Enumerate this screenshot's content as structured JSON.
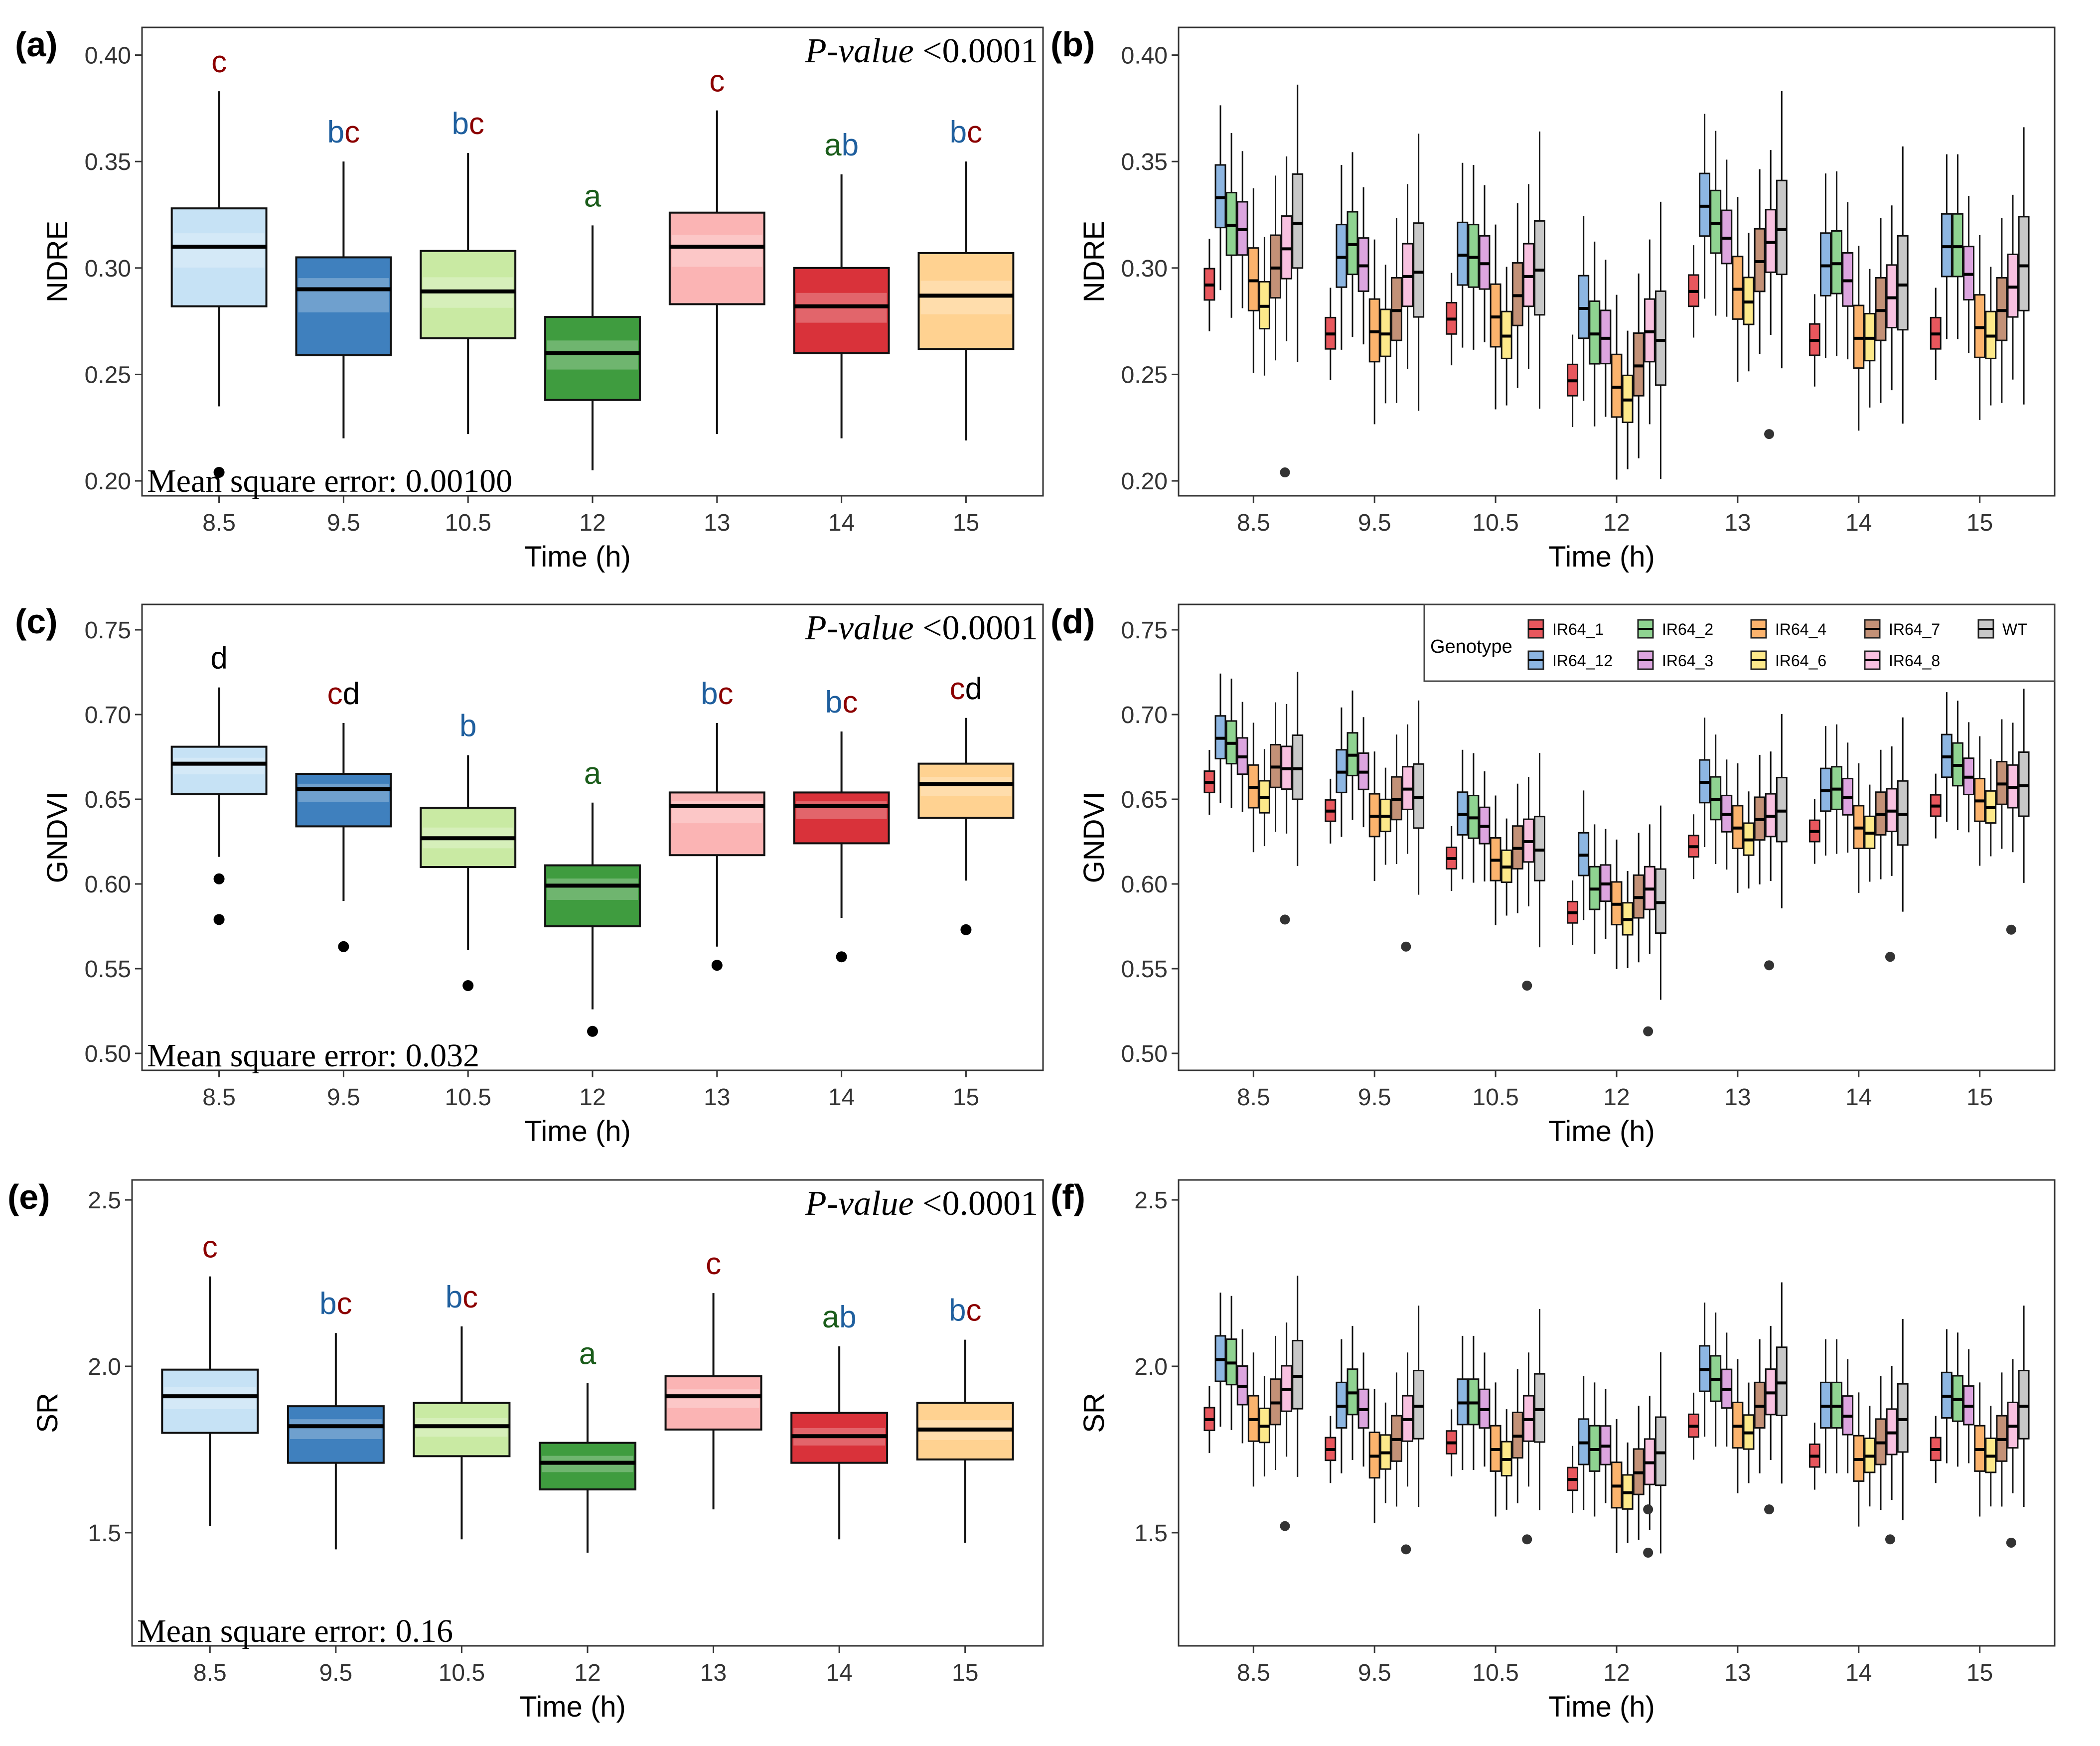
{
  "colors": {
    "time_palette": [
      "#c6e2f5",
      "#3f80be",
      "#c9eaa3",
      "#3f9c3f",
      "#fbb4b4",
      "#d9323a",
      "#ffd291"
    ],
    "genotype_palette": [
      "#e8575d",
      "#8db6e2",
      "#8fd391",
      "#dca5df",
      "#fbb36d",
      "#fde98a",
      "#c39177",
      "#f8c1e0",
      "#c8c8c8"
    ],
    "letter_red": "#8b0000",
    "letter_blue": "#1f5f9e",
    "letter_green": "#1a5c1a",
    "letter_black": "#000000"
  },
  "legend": {
    "title": "Genotype",
    "items": [
      "IR64_1",
      "IR64_12",
      "IR64_2",
      "IR64_3",
      "IR64_4",
      "IR64_6",
      "IR64_7",
      "IR64_8",
      "WT"
    ]
  },
  "chart_data": [
    {
      "panel": "(a)",
      "type": "box",
      "ylabel": "NDRE",
      "xlabel": "Time (h)",
      "ylim": [
        0.193,
        0.413
      ],
      "yticks": [
        0.2,
        0.25,
        0.3,
        0.35,
        0.4
      ],
      "ytick_decimals": 2,
      "categories": [
        "8.5",
        "9.5",
        "10.5",
        "12",
        "13",
        "14",
        "15"
      ],
      "pvalue_label": "P-value",
      "pvalue_text": "<0.0001",
      "mse_text": "Mean square error: 0.00100",
      "boxes": [
        {
          "whislo": 0.235,
          "q1": 0.282,
          "med": 0.31,
          "q3": 0.328,
          "whishi": 0.383,
          "fliers": [
            0.204
          ],
          "letters": [
            [
              "c",
              "red"
            ]
          ]
        },
        {
          "whislo": 0.22,
          "q1": 0.259,
          "med": 0.29,
          "q3": 0.305,
          "whishi": 0.35,
          "fliers": [],
          "letters": [
            [
              "b",
              "blue"
            ],
            [
              "c",
              "red"
            ]
          ]
        },
        {
          "whislo": 0.222,
          "q1": 0.267,
          "med": 0.289,
          "q3": 0.308,
          "whishi": 0.354,
          "fliers": [],
          "letters": [
            [
              "b",
              "blue"
            ],
            [
              "c",
              "red"
            ]
          ]
        },
        {
          "whislo": 0.205,
          "q1": 0.238,
          "med": 0.26,
          "q3": 0.277,
          "whishi": 0.32,
          "fliers": [],
          "letters": [
            [
              "a",
              "green"
            ]
          ]
        },
        {
          "whislo": 0.222,
          "q1": 0.283,
          "med": 0.31,
          "q3": 0.326,
          "whishi": 0.374,
          "fliers": [],
          "letters": [
            [
              "c",
              "red"
            ]
          ]
        },
        {
          "whislo": 0.22,
          "q1": 0.26,
          "med": 0.282,
          "q3": 0.3,
          "whishi": 0.344,
          "fliers": [],
          "letters": [
            [
              "a",
              "green"
            ],
            [
              "b",
              "blue"
            ]
          ]
        },
        {
          "whislo": 0.219,
          "q1": 0.262,
          "med": 0.287,
          "q3": 0.307,
          "whishi": 0.35,
          "fliers": [],
          "letters": [
            [
              "b",
              "blue"
            ],
            [
              "c",
              "red"
            ]
          ]
        }
      ]
    },
    {
      "panel": "(b)",
      "type": "grouped-box",
      "ylabel": "NDRE",
      "xlabel": "Time (h)",
      "ylim": [
        0.193,
        0.413
      ],
      "yticks": [
        0.2,
        0.25,
        0.3,
        0.35,
        0.4
      ],
      "ytick_decimals": 2,
      "categories": [
        "8.5",
        "9.5",
        "10.5",
        "12",
        "13",
        "14",
        "15"
      ],
      "group_meds": [
        [
          0.292,
          0.333,
          0.32,
          0.318,
          0.294,
          0.282,
          0.3,
          0.309,
          0.321
        ],
        [
          0.269,
          0.305,
          0.311,
          0.301,
          0.27,
          0.269,
          0.28,
          0.296,
          0.298
        ],
        [
          0.276,
          0.306,
          0.305,
          0.302,
          0.277,
          0.268,
          0.287,
          0.296,
          0.299
        ],
        [
          0.247,
          0.281,
          0.269,
          0.267,
          0.244,
          0.238,
          0.254,
          0.27,
          0.266
        ],
        [
          0.289,
          0.329,
          0.321,
          0.314,
          0.29,
          0.284,
          0.303,
          0.312,
          0.318
        ],
        [
          0.266,
          0.301,
          0.302,
          0.294,
          0.267,
          0.267,
          0.28,
          0.286,
          0.292
        ],
        [
          0.269,
          0.31,
          0.31,
          0.297,
          0.272,
          0.268,
          0.28,
          0.291,
          0.301
        ]
      ],
      "group_spread": [
        0.5,
        1.0,
        1.0,
        0.85,
        1.0,
        0.75,
        1.0,
        1.0,
        1.5
      ],
      "box_half": 0.014,
      "whisker_len": 0.028,
      "fliers": [
        [
          8.5,
          0.204
        ],
        [
          13,
          0.222
        ]
      ]
    },
    {
      "panel": "(c)",
      "type": "box",
      "ylabel": "GNDVI",
      "xlabel": "Time (h)",
      "ylim": [
        0.49,
        0.765
      ],
      "yticks": [
        0.5,
        0.55,
        0.6,
        0.65,
        0.7,
        0.75
      ],
      "ytick_decimals": 2,
      "categories": [
        "8.5",
        "9.5",
        "10.5",
        "12",
        "13",
        "14",
        "15"
      ],
      "pvalue_label": "P-value",
      "pvalue_text": "<0.0001",
      "mse_text": "Mean square error: 0.032",
      "boxes": [
        {
          "whislo": 0.616,
          "q1": 0.653,
          "med": 0.671,
          "q3": 0.681,
          "whishi": 0.716,
          "fliers": [
            0.603,
            0.579
          ],
          "letters": [
            [
              "d",
              "black"
            ]
          ]
        },
        {
          "whislo": 0.59,
          "q1": 0.634,
          "med": 0.656,
          "q3": 0.665,
          "whishi": 0.695,
          "fliers": [
            0.563
          ],
          "letters": [
            [
              "c",
              "red"
            ],
            [
              "d",
              "black"
            ]
          ]
        },
        {
          "whislo": 0.561,
          "q1": 0.61,
          "med": 0.627,
          "q3": 0.645,
          "whishi": 0.676,
          "fliers": [
            0.54
          ],
          "letters": [
            [
              "b",
              "blue"
            ]
          ]
        },
        {
          "whislo": 0.526,
          "q1": 0.575,
          "med": 0.599,
          "q3": 0.611,
          "whishi": 0.648,
          "fliers": [
            0.513
          ],
          "letters": [
            [
              "a",
              "green"
            ]
          ]
        },
        {
          "whislo": 0.563,
          "q1": 0.617,
          "med": 0.646,
          "q3": 0.654,
          "whishi": 0.695,
          "fliers": [
            0.552
          ],
          "letters": [
            [
              "b",
              "blue"
            ],
            [
              "c",
              "red"
            ]
          ]
        },
        {
          "whislo": 0.58,
          "q1": 0.624,
          "med": 0.646,
          "q3": 0.654,
          "whishi": 0.69,
          "fliers": [
            0.557
          ],
          "letters": [
            [
              "b",
              "blue"
            ],
            [
              "c",
              "red"
            ]
          ]
        },
        {
          "whislo": 0.602,
          "q1": 0.639,
          "med": 0.659,
          "q3": 0.671,
          "whishi": 0.698,
          "fliers": [
            0.573
          ],
          "letters": [
            [
              "c",
              "red"
            ],
            [
              "d",
              "black"
            ]
          ]
        }
      ]
    },
    {
      "panel": "(d)",
      "type": "grouped-box",
      "ylabel": "GNDVI",
      "xlabel": "Time (h)",
      "ylim": [
        0.49,
        0.765
      ],
      "yticks": [
        0.5,
        0.55,
        0.6,
        0.65,
        0.7,
        0.75
      ],
      "ytick_decimals": 2,
      "categories": [
        "8.5",
        "9.5",
        "10.5",
        "12",
        "13",
        "14",
        "15"
      ],
      "group_meds": [
        [
          0.66,
          0.686,
          0.683,
          0.675,
          0.657,
          0.651,
          0.669,
          0.668,
          0.668
        ],
        [
          0.643,
          0.666,
          0.676,
          0.666,
          0.64,
          0.64,
          0.65,
          0.656,
          0.651
        ],
        [
          0.615,
          0.641,
          0.639,
          0.634,
          0.614,
          0.61,
          0.621,
          0.625,
          0.62
        ],
        [
          0.583,
          0.617,
          0.597,
          0.6,
          0.588,
          0.579,
          0.592,
          0.597,
          0.589
        ],
        [
          0.622,
          0.66,
          0.65,
          0.641,
          0.633,
          0.626,
          0.638,
          0.64,
          0.643
        ],
        [
          0.631,
          0.655,
          0.656,
          0.651,
          0.633,
          0.63,
          0.641,
          0.643,
          0.641
        ],
        [
          0.646,
          0.675,
          0.67,
          0.663,
          0.649,
          0.645,
          0.659,
          0.657,
          0.658
        ]
      ],
      "group_spread": [
        0.5,
        1.0,
        1.0,
        0.85,
        1.0,
        0.75,
        1.0,
        1.0,
        1.5
      ],
      "box_half": 0.012,
      "whisker_len": 0.025,
      "fliers": [
        [
          8.5,
          0.579
        ],
        [
          9.5,
          0.563
        ],
        [
          10.5,
          0.54
        ],
        [
          12,
          0.513
        ],
        [
          13,
          0.552
        ],
        [
          14,
          0.557
        ],
        [
          15,
          0.573
        ]
      ]
    },
    {
      "panel": "(e)",
      "type": "box",
      "ylabel": "SR",
      "xlabel": "Time (h)",
      "ylim": [
        1.16,
        2.56
      ],
      "yticks": [
        1.5,
        2.0,
        2.5
      ],
      "ytick_decimals": 1,
      "categories": [
        "8.5",
        "9.5",
        "10.5",
        "12",
        "13",
        "14",
        "15"
      ],
      "pvalue_label": "P-value",
      "pvalue_text": "<0.0001",
      "mse_text": "Mean square error: 0.16",
      "boxes": [
        {
          "whislo": 1.52,
          "q1": 1.8,
          "med": 1.91,
          "q3": 1.99,
          "whishi": 2.27,
          "fliers": [],
          "letters": [
            [
              "c",
              "red"
            ]
          ]
        },
        {
          "whislo": 1.45,
          "q1": 1.71,
          "med": 1.82,
          "q3": 1.88,
          "whishi": 2.1,
          "fliers": [],
          "letters": [
            [
              "b",
              "blue"
            ],
            [
              "c",
              "red"
            ]
          ]
        },
        {
          "whislo": 1.48,
          "q1": 1.73,
          "med": 1.82,
          "q3": 1.89,
          "whishi": 2.12,
          "fliers": [],
          "letters": [
            [
              "b",
              "blue"
            ],
            [
              "c",
              "red"
            ]
          ]
        },
        {
          "whislo": 1.44,
          "q1": 1.63,
          "med": 1.71,
          "q3": 1.77,
          "whishi": 1.95,
          "fliers": [],
          "letters": [
            [
              "a",
              "green"
            ]
          ]
        },
        {
          "whislo": 1.57,
          "q1": 1.81,
          "med": 1.91,
          "q3": 1.97,
          "whishi": 2.22,
          "fliers": [],
          "letters": [
            [
              "c",
              "red"
            ]
          ]
        },
        {
          "whislo": 1.48,
          "q1": 1.71,
          "med": 1.79,
          "q3": 1.86,
          "whishi": 2.06,
          "fliers": [],
          "letters": [
            [
              "a",
              "green"
            ],
            [
              "b",
              "blue"
            ]
          ]
        },
        {
          "whislo": 1.47,
          "q1": 1.72,
          "med": 1.81,
          "q3": 1.89,
          "whishi": 2.08,
          "fliers": [],
          "letters": [
            [
              "b",
              "blue"
            ],
            [
              "c",
              "red"
            ]
          ]
        }
      ]
    },
    {
      "panel": "(f)",
      "type": "grouped-box",
      "ylabel": "SR",
      "xlabel": "Time (h)",
      "ylim": [
        1.16,
        2.56
      ],
      "yticks": [
        1.5,
        2.0,
        2.5
      ],
      "ytick_decimals": 1,
      "categories": [
        "8.5",
        "9.5",
        "10.5",
        "12",
        "13",
        "14",
        "15"
      ],
      "group_meds": [
        [
          1.84,
          2.02,
          2.01,
          1.94,
          1.84,
          1.82,
          1.89,
          1.93,
          1.97
        ],
        [
          1.75,
          1.88,
          1.92,
          1.87,
          1.73,
          1.74,
          1.78,
          1.84,
          1.88
        ],
        [
          1.77,
          1.89,
          1.89,
          1.87,
          1.75,
          1.72,
          1.79,
          1.84,
          1.87
        ],
        [
          1.66,
          1.77,
          1.75,
          1.76,
          1.64,
          1.62,
          1.68,
          1.71,
          1.74
        ],
        [
          1.82,
          1.99,
          1.96,
          1.93,
          1.82,
          1.8,
          1.88,
          1.92,
          1.95
        ],
        [
          1.73,
          1.88,
          1.88,
          1.85,
          1.72,
          1.73,
          1.77,
          1.8,
          1.84
        ],
        [
          1.75,
          1.91,
          1.9,
          1.88,
          1.75,
          1.73,
          1.78,
          1.82,
          1.88
        ]
      ],
      "group_spread": [
        0.5,
        1.0,
        1.0,
        0.85,
        1.0,
        0.75,
        1.0,
        1.0,
        1.5
      ],
      "box_half": 0.065,
      "whisker_len": 0.13,
      "fliers": [
        [
          8.5,
          1.52
        ],
        [
          9.5,
          1.45
        ],
        [
          10.5,
          1.48
        ],
        [
          12,
          1.57
        ],
        [
          12,
          1.44
        ],
        [
          13,
          1.57
        ],
        [
          14,
          1.48
        ],
        [
          15,
          1.47
        ]
      ]
    }
  ]
}
